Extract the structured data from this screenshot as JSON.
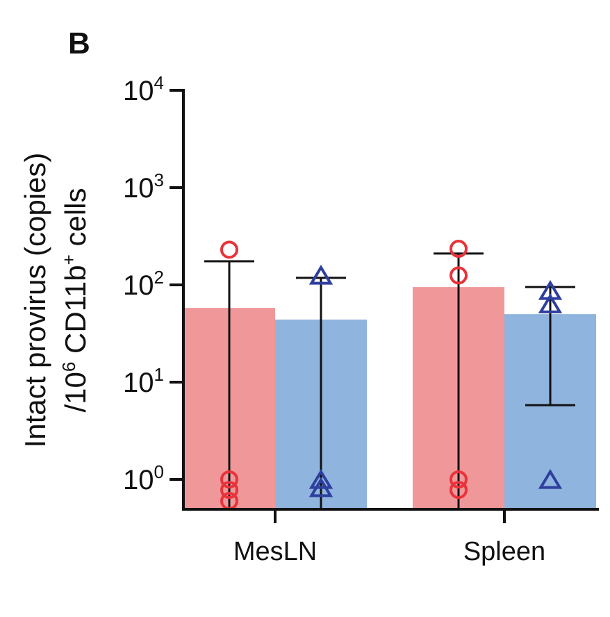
{
  "panel_label": "B",
  "chart_data": {
    "type": "bar",
    "yscale": "log",
    "ylim": [
      0.5,
      10000
    ],
    "yticks": [
      {
        "value": 1,
        "base": "10",
        "exp": "0"
      },
      {
        "value": 10,
        "base": "10",
        "exp": "1"
      },
      {
        "value": 100,
        "base": "10",
        "exp": "2"
      },
      {
        "value": 1000,
        "base": "10",
        "exp": "3"
      },
      {
        "value": 10000,
        "base": "10",
        "exp": "4"
      }
    ],
    "ylabel": {
      "line1": "Intact provirus (copies)",
      "line2_pre": "/10",
      "line2_sup1": "6",
      "line2_mid": " CD11b",
      "line2_sup2": "+",
      "line2_post": " cells"
    },
    "categories": [
      "MesLN",
      "Spleen"
    ],
    "series": [
      {
        "color": "#f0979a",
        "marker_color": "#e8333a",
        "marker": "circle",
        "values": [
          58,
          95
        ],
        "err_upper": [
          175,
          210
        ],
        "err_lower": [
          null,
          null
        ],
        "points": [
          [
            230,
            1.0,
            0.78,
            0.6
          ],
          [
            235,
            125,
            1.0,
            0.78
          ]
        ]
      },
      {
        "color": "#8fb4dd",
        "marker_color": "#2e3f9e",
        "marker": "triangle",
        "values": [
          44,
          50
        ],
        "err_upper": [
          118,
          95
        ],
        "err_lower": [
          null,
          5.8
        ],
        "points": [
          [
            122,
            0.97,
            0.8
          ],
          [
            85,
            62,
            0.97
          ]
        ]
      }
    ]
  }
}
